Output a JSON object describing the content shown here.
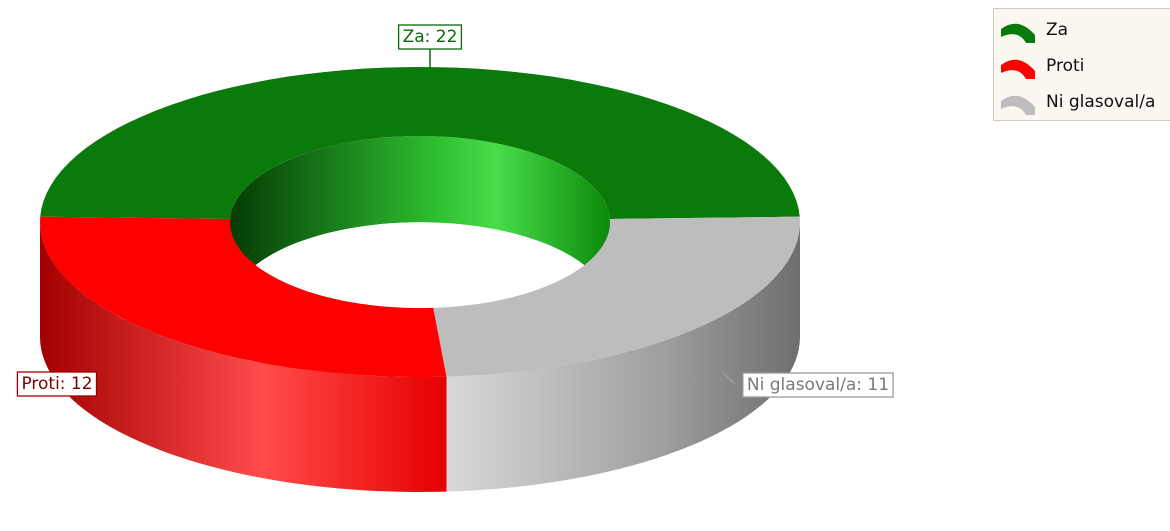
{
  "chart_data": {
    "type": "pie",
    "variant": "3d-doughnut",
    "categories": [
      "Za",
      "Proti",
      "Ni glasoval/a"
    ],
    "values": [
      22,
      12,
      11
    ],
    "colors": [
      "#0a7a0a",
      "#ff0000",
      "#bdbdbd"
    ],
    "data_labels": [
      "Za: 22",
      "Proti: 12",
      "Ni glasoval/a: 11"
    ],
    "legend": {
      "position": "top-right",
      "items": [
        "Za",
        "Proti",
        "Ni glasoval/a"
      ]
    }
  }
}
